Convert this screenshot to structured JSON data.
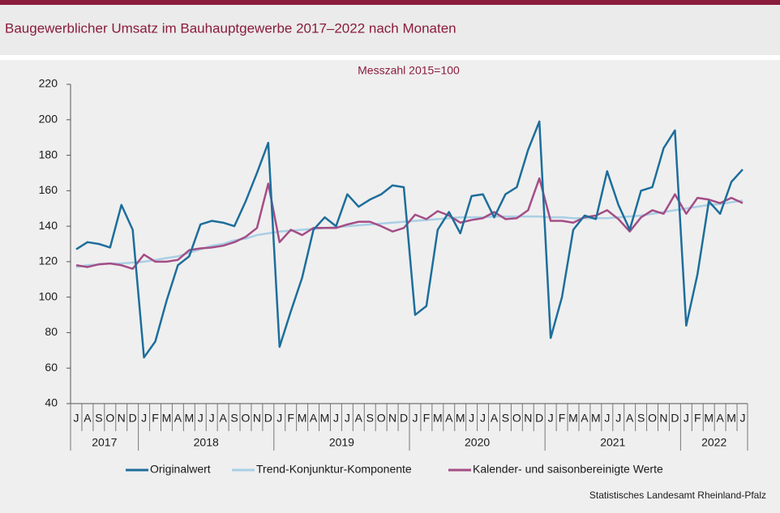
{
  "chart_data": {
    "type": "line",
    "title": "Baugewerblicher Umsatz im Bauhauptgewerbe 2017–2022 nach Monaten",
    "subtitle": "Messzahl 2015=100",
    "source": "Statistisches Landesamt Rheinland-Pfalz",
    "years": [
      {
        "year": "2017",
        "months": [
          "J",
          "A",
          "S",
          "O",
          "N",
          "D"
        ]
      },
      {
        "year": "2018",
        "months": [
          "J",
          "F",
          "M",
          "A",
          "M",
          "J",
          "J",
          "A",
          "S",
          "O",
          "N",
          "D"
        ]
      },
      {
        "year": "2019",
        "months": [
          "J",
          "F",
          "M",
          "A",
          "M",
          "J",
          "J",
          "A",
          "S",
          "O",
          "N",
          "D"
        ]
      },
      {
        "year": "2020",
        "months": [
          "J",
          "F",
          "M",
          "A",
          "M",
          "J",
          "J",
          "A",
          "S",
          "O",
          "N",
          "D"
        ]
      },
      {
        "year": "2021",
        "months": [
          "J",
          "F",
          "M",
          "A",
          "M",
          "J",
          "J",
          "A",
          "S",
          "O",
          "N",
          "D"
        ]
      },
      {
        "year": "2022",
        "months": [
          "J",
          "F",
          "M",
          "A",
          "M",
          "J"
        ]
      }
    ],
    "ylim": [
      40,
      220
    ],
    "yticks": [
      40,
      60,
      80,
      100,
      120,
      140,
      160,
      180,
      200,
      220
    ],
    "grid": false,
    "legend": "bottom",
    "series": [
      {
        "name": "Originalwert",
        "color": "#1d6e9b",
        "values": [
          127,
          131,
          130,
          128,
          152,
          138,
          66,
          75,
          98,
          118,
          123,
          141,
          143,
          142,
          140,
          154,
          170,
          187,
          72,
          92,
          111,
          138,
          145,
          140,
          158,
          151,
          155,
          158,
          163,
          162,
          90,
          95,
          138,
          148,
          136,
          157,
          158,
          145,
          158,
          162,
          183,
          199,
          77,
          100,
          138,
          146,
          144,
          171,
          152,
          138,
          160,
          162,
          184,
          194,
          84,
          113,
          154,
          147,
          165,
          172
        ]
      },
      {
        "name": "Trend-Konjunktur-Komponente",
        "color": "#a9cfe5",
        "values": [
          117,
          118,
          118.5,
          119,
          119,
          119.5,
          120,
          121,
          122,
          123,
          125,
          127,
          129,
          130,
          132,
          133,
          135,
          136,
          137,
          137.5,
          138,
          138.5,
          139,
          139.5,
          140,
          140.5,
          141,
          141.5,
          142,
          142.5,
          143,
          143.5,
          144,
          144.5,
          145,
          145,
          145,
          145.5,
          145.5,
          145.5,
          145.5,
          145.5,
          145,
          145,
          144.5,
          144.5,
          144.5,
          144.5,
          145,
          145.5,
          146,
          147,
          148,
          149,
          150,
          151,
          152,
          152.5,
          153.5,
          154.5
        ]
      },
      {
        "name": "Kalender- und saisonbereinigte Werte",
        "color": "#a44d86",
        "values": [
          118,
          117,
          118.5,
          119,
          118,
          116,
          124,
          120,
          120,
          121,
          126.5,
          127.5,
          128,
          129,
          131,
          134,
          139,
          164,
          131,
          138,
          135,
          139,
          139,
          139,
          141,
          142.5,
          142.5,
          140,
          137,
          139,
          146.5,
          144,
          148.5,
          146,
          142,
          143.5,
          144.5,
          148,
          144,
          144.5,
          149,
          167,
          143,
          143,
          142,
          145,
          146,
          149,
          144,
          137,
          145,
          149,
          147,
          158,
          147,
          156,
          155,
          153,
          156,
          153
        ]
      }
    ]
  }
}
